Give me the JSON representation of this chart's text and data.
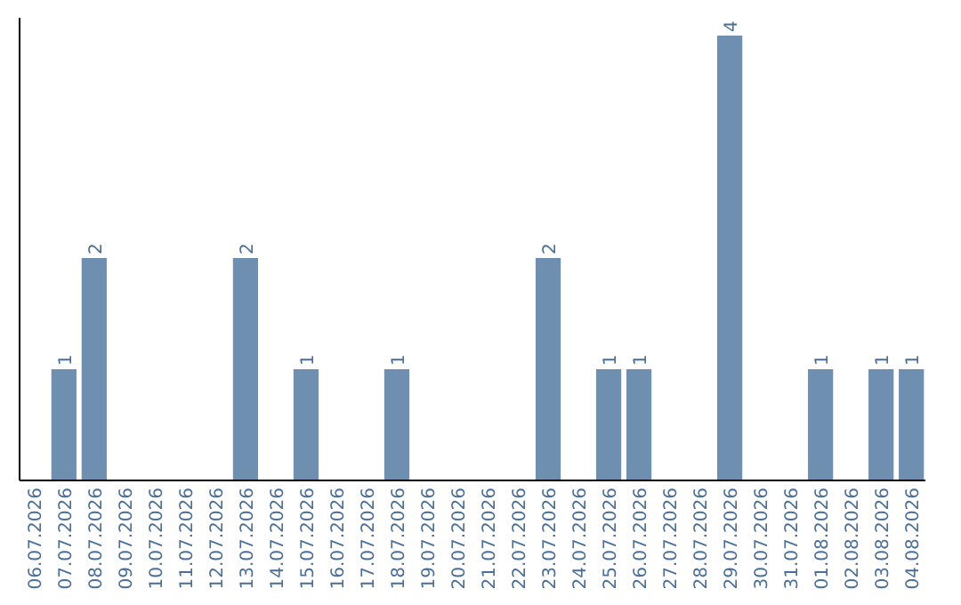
{
  "chart_data": {
    "type": "bar",
    "categories": [
      "06.07.2026",
      "07.07.2026",
      "08.07.2026",
      "09.07.2026",
      "10.07.2026",
      "11.07.2026",
      "12.07.2026",
      "13.07.2026",
      "14.07.2026",
      "15.07.2026",
      "16.07.2026",
      "17.07.2026",
      "18.07.2026",
      "19.07.2026",
      "20.07.2026",
      "21.07.2026",
      "22.07.2026",
      "23.07.2026",
      "24.07.2026",
      "25.07.2026",
      "26.07.2026",
      "27.07.2026",
      "28.07.2026",
      "29.07.2026",
      "30.07.2026",
      "31.07.2026",
      "01.08.2026",
      "02.08.2026",
      "03.08.2026",
      "04.08.2026"
    ],
    "values": [
      0,
      1,
      2,
      0,
      0,
      0,
      0,
      2,
      0,
      1,
      0,
      0,
      1,
      0,
      0,
      0,
      0,
      2,
      0,
      1,
      1,
      0,
      0,
      4,
      0,
      0,
      1,
      0,
      1,
      1
    ],
    "value_labels": [
      null,
      "1",
      "2",
      null,
      null,
      null,
      null,
      "2",
      null,
      "1",
      null,
      null,
      "1",
      null,
      null,
      null,
      null,
      "2",
      null,
      "1",
      "1",
      null,
      null,
      "4",
      null,
      null,
      "1",
      null,
      "1",
      "1"
    ],
    "color": "#6f8fb0",
    "tick_labels": "x"
  }
}
